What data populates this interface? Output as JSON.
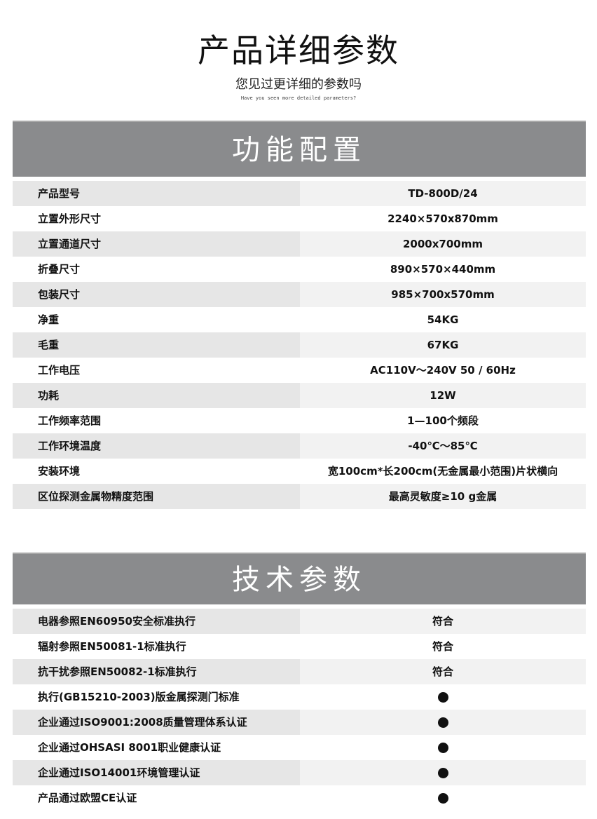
{
  "header": {
    "title": "产品详细参数",
    "subtitle": "您见过更详细的参数吗",
    "subtitle_en": "Have you seen more detailed parameters?"
  },
  "config": {
    "title": "功能配置",
    "rows": [
      {
        "k": "产品型号",
        "v": "TD-800D/24"
      },
      {
        "k": "立置外形尺寸",
        "v": "2240×570x870mm"
      },
      {
        "k": "立置通道尺寸",
        "v": "2000x700mm"
      },
      {
        "k": "折叠尺寸",
        "v": "890×570×440mm"
      },
      {
        "k": "包装尺寸",
        "v": "985×700x570mm"
      },
      {
        "k": "净重",
        "v": "54KG"
      },
      {
        "k": "毛重",
        "v": "67KG"
      },
      {
        "k": "工作电压",
        "v": "AC110V～240V 50 / 60Hz"
      },
      {
        "k": "功耗",
        "v": "12W"
      },
      {
        "k": "工作频率范围",
        "v": "1—100个频段"
      },
      {
        "k": "工作环境温度",
        "v": "-40℃～85℃"
      },
      {
        "k": "安装环境",
        "v": "宽100cm*长200cm(无金属最小范围)片状横向"
      },
      {
        "k": "区位探测金属物精度范围",
        "v": "最高灵敏度≥10 g金属"
      }
    ]
  },
  "tech": {
    "title": "技术参数",
    "rows": [
      {
        "k": "电器参照EN60950安全标准执行",
        "v": "符合"
      },
      {
        "k": "辐射参照EN50081-1标准执行",
        "v": "符合"
      },
      {
        "k": "抗干扰参照EN50082-1标准执行",
        "v": "符合"
      },
      {
        "k": "执行(GB15210-2003)版金属探测门标准",
        "dot": true
      },
      {
        "k": "企业通过ISO9001:2008质量管理体系认证",
        "dot": true
      },
      {
        "k": "企业通过OHSASI 8001职业健康认证",
        "dot": true
      },
      {
        "k": "企业通过ISO14001环境管理认证",
        "dot": true
      },
      {
        "k": "产品通过欧盟CE认证",
        "dot": true
      }
    ]
  }
}
